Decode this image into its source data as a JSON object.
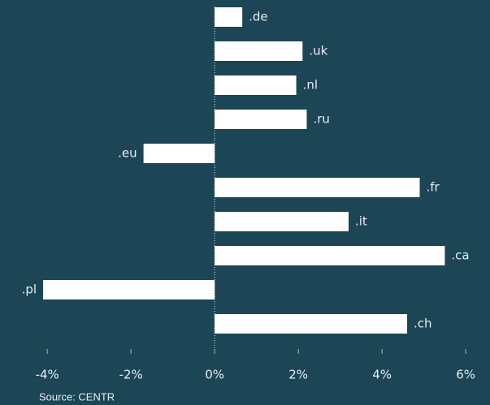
{
  "chart_data": {
    "type": "barh",
    "categories": [
      ".de",
      ".uk",
      ".nl",
      ".ru",
      ".eu",
      ".fr",
      ".it",
      ".ca",
      ".pl",
      ".ch"
    ],
    "values": [
      0.66,
      2.1,
      1.95,
      2.2,
      -1.7,
      4.9,
      3.2,
      5.5,
      -4.1,
      4.6
    ],
    "color": "#ffffff",
    "xlim": [
      -5.13,
      6.58
    ],
    "xticks": [
      {
        "value": -4,
        "label": "-4%"
      },
      {
        "value": -2,
        "label": "-2%"
      },
      {
        "value": 0,
        "label": "0%"
      },
      {
        "value": 2,
        "label": "2%"
      },
      {
        "value": 4,
        "label": "4%"
      },
      {
        "value": 6,
        "label": "6%"
      }
    ],
    "source": "Source: CENTR"
  }
}
